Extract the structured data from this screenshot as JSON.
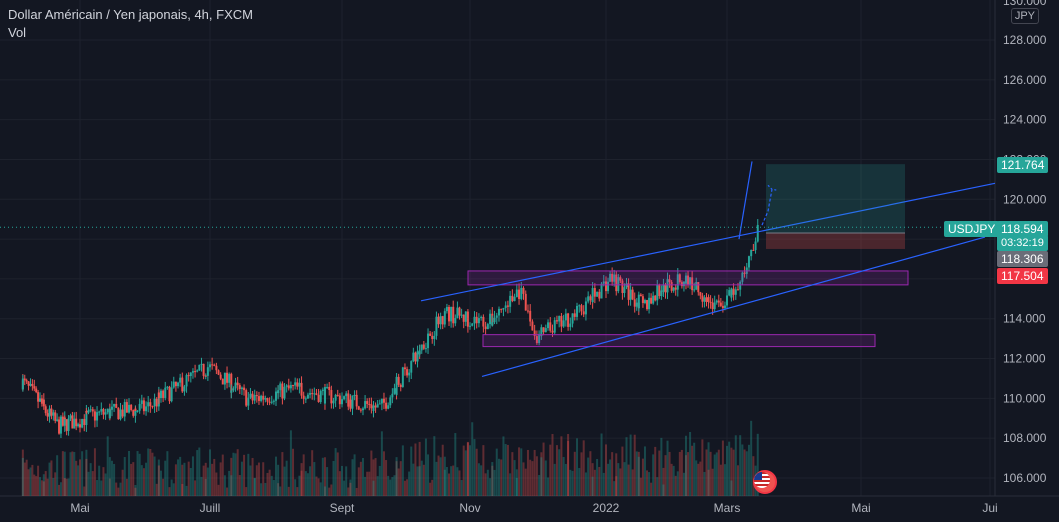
{
  "header": {
    "symbol_title": "Dollar Américain / Yen japonais, 4h, FXCM",
    "indicator": "Vol",
    "currency": "JPY"
  },
  "colors": {
    "background": "#131722",
    "up": "#26a69a",
    "down": "#ef5350",
    "trendline": "#2962ff",
    "zone": "#9c27b0",
    "target_zone": "#26a69a",
    "stop_zone": "#ef5350"
  },
  "price_scale": {
    "ticks": [
      "128.000",
      "126.000",
      "124.000",
      "122.000",
      "120.000",
      "118.000",
      "116.000",
      "114.000",
      "112.000",
      "110.000",
      "108.000",
      "106.000"
    ],
    "top_label": "130.000"
  },
  "time_axis": {
    "labels": [
      "Mai",
      "Juill",
      "Sept",
      "Nov",
      "2022",
      "Mars",
      "Mai",
      "Jui"
    ]
  },
  "badges": {
    "target_price": "121.764",
    "symbol": "USDJPY",
    "last_price": "118.594",
    "countdown": "03:32:19",
    "ask_price": "118.306",
    "stop_price": "117.504"
  },
  "chart_data": {
    "type": "candlestick",
    "symbol": "USDJPY",
    "timeframe": "4h",
    "y_range": [
      105.6,
      130.4
    ],
    "price_path": [
      {
        "date": "2021-04-01",
        "price": 110.9
      },
      {
        "date": "2021-04-20",
        "price": 108.6
      },
      {
        "date": "2021-05-10",
        "price": 109.2
      },
      {
        "date": "2021-06-01",
        "price": 109.5
      },
      {
        "date": "2021-07-01",
        "price": 111.6
      },
      {
        "date": "2021-07-20",
        "price": 109.9
      },
      {
        "date": "2021-08-10",
        "price": 110.5
      },
      {
        "date": "2021-09-01",
        "price": 110.0
      },
      {
        "date": "2021-09-20",
        "price": 109.5
      },
      {
        "date": "2021-10-01",
        "price": 111.2
      },
      {
        "date": "2021-10-20",
        "price": 114.3
      },
      {
        "date": "2021-11-10",
        "price": 113.8
      },
      {
        "date": "2021-11-24",
        "price": 115.4
      },
      {
        "date": "2021-12-01",
        "price": 113.0
      },
      {
        "date": "2021-12-20",
        "price": 114.3
      },
      {
        "date": "2022-01-04",
        "price": 116.1
      },
      {
        "date": "2022-01-20",
        "price": 114.6
      },
      {
        "date": "2022-01-28",
        "price": 115.5
      },
      {
        "date": "2022-02-10",
        "price": 116.0
      },
      {
        "date": "2022-02-24",
        "price": 114.6
      },
      {
        "date": "2022-03-07",
        "price": 115.4
      },
      {
        "date": "2022-03-15",
        "price": 118.6
      }
    ],
    "annotations": {
      "resistance_zone": [
        115.7,
        116.4
      ],
      "support_zone": [
        112.6,
        113.2
      ],
      "target": 121.764,
      "entry": 118.306,
      "stop": 117.504,
      "projection_target": 120.5
    }
  }
}
